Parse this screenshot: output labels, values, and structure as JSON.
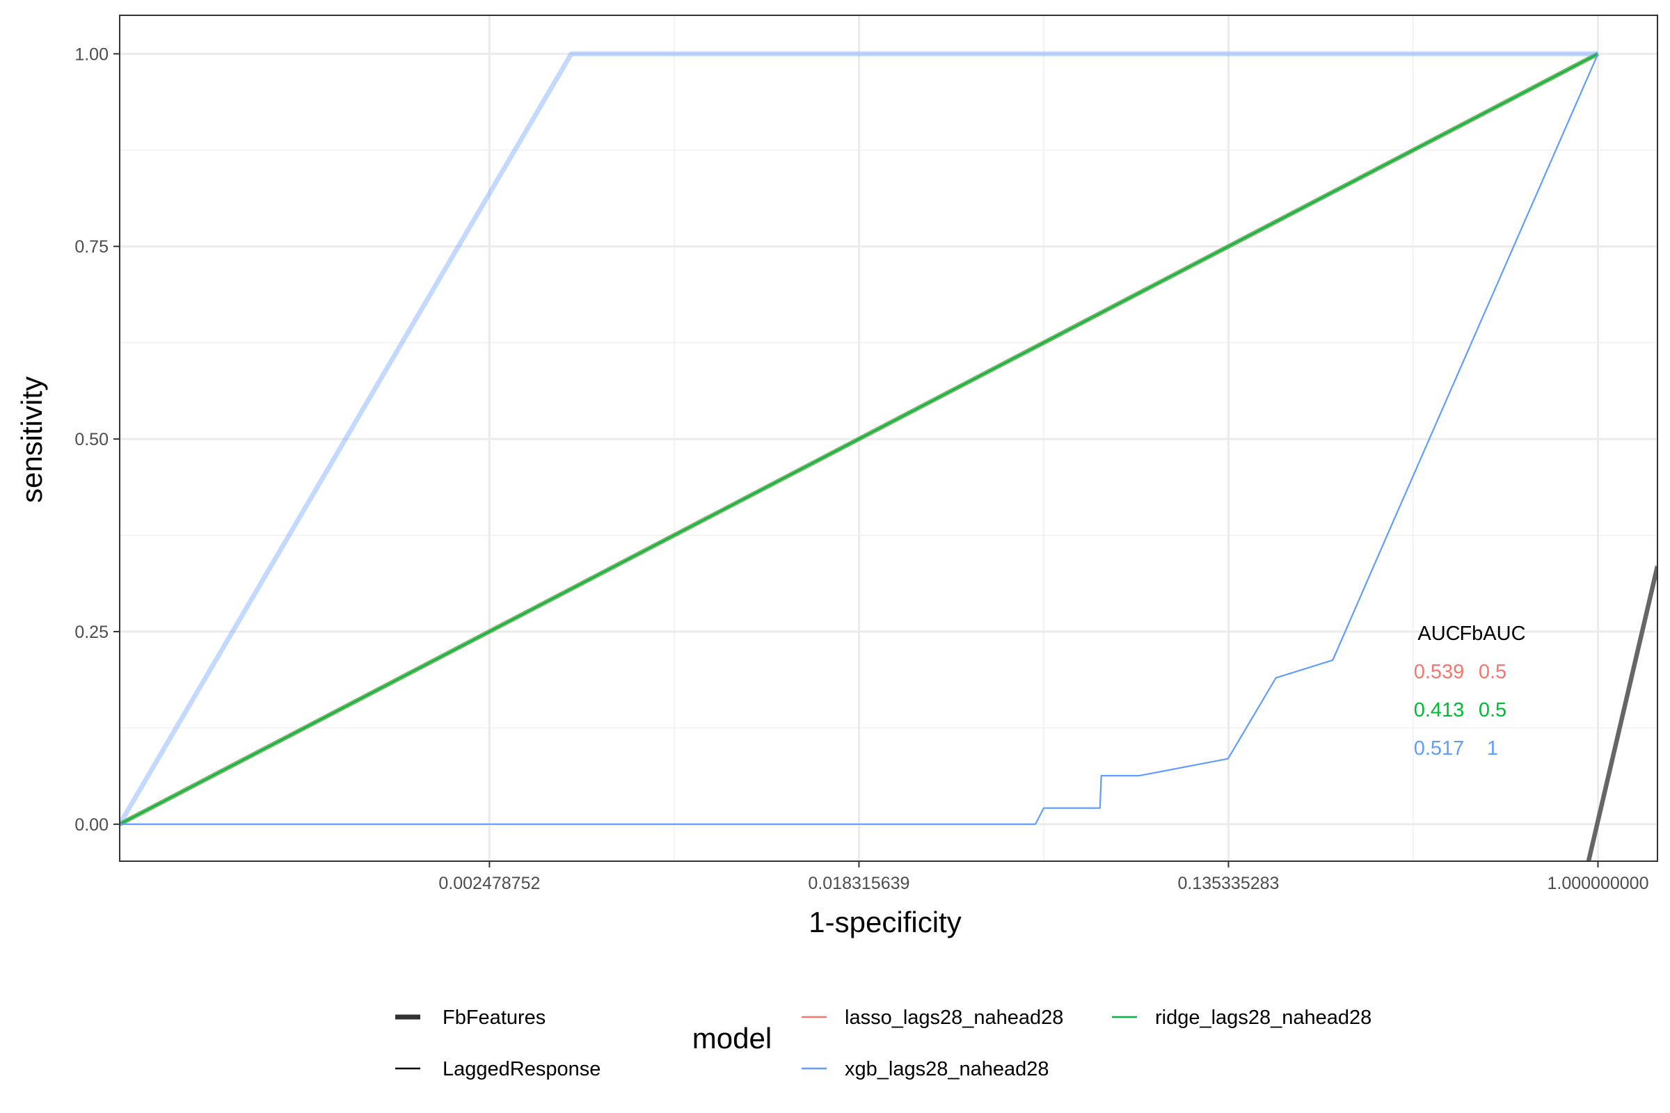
{
  "chart_data": {
    "type": "line",
    "title": "",
    "xlabel": "1-specificity",
    "ylabel": "sensitivity",
    "x_scale": "log",
    "x_tick_values": [
      0.002478752,
      0.018315639,
      0.135335283,
      1.0
    ],
    "x_tick_labels": [
      "0.002478752",
      "0.018315639",
      "0.135335283",
      "1.000000000"
    ],
    "xlim": [
      0.000335,
      1.38
    ],
    "y_ticks": [
      0,
      0.25,
      0.5,
      0.75,
      1
    ],
    "y_tick_labels": [
      "0.00",
      "0.25",
      "0.50",
      "0.75",
      "1.00"
    ],
    "ylim": [
      -0.048,
      1.05
    ],
    "grid": true,
    "theme": "bw",
    "legend": {
      "position": "bottom",
      "title": "model",
      "linetype_items": [
        {
          "label": "FbFeatures",
          "style": "thick",
          "color": "#333333"
        },
        {
          "label": "LaggedResponse",
          "style": "thin",
          "color": "#000000"
        }
      ],
      "color_items": [
        {
          "label": "lasso_lags28_nahead28",
          "color": "#F8766D"
        },
        {
          "label": "xgb_lags28_nahead28",
          "color": "#619CFF"
        },
        {
          "label": "ridge_lags28_nahead28",
          "color": "#00BA38"
        }
      ]
    },
    "series": [
      {
        "name": "lasso_lags28_nahead28",
        "group": "LaggedResponse",
        "color": "#F8766D",
        "x": [
          0.000335,
          1.0
        ],
        "y": [
          0.0,
          1.0
        ]
      },
      {
        "name": "ridge_lags28_nahead28",
        "group": "LaggedResponse",
        "color": "#00BA38",
        "x": [
          0.000335,
          1.0
        ],
        "y": [
          0.0,
          1.0
        ]
      },
      {
        "name": "xgb_lags28_nahead28",
        "group": "LaggedResponse",
        "color": "#619CFF",
        "x": [
          0.000335,
          0.0476,
          0.0498,
          0.0675,
          0.068,
          0.0835,
          0.135,
          0.175,
          0.238,
          0.312,
          1.0
        ],
        "y": [
          0.0,
          0.0,
          0.021,
          0.021,
          0.063,
          0.063,
          0.085,
          0.19,
          0.213,
          0.362,
          1.0
        ]
      },
      {
        "name": "lasso_lags28_nahead28",
        "group": "FbFeatures",
        "color": "#F8766D",
        "x": [
          0.000335,
          1.0
        ],
        "y": [
          0.0,
          1.0
        ]
      },
      {
        "name": "ridge_lags28_nahead28",
        "group": "FbFeatures",
        "color": "#00BA38",
        "x": [
          0.000335,
          1.0
        ],
        "y": [
          0.0,
          1.0
        ]
      },
      {
        "name": "xgb_lags28_nahead28",
        "group": "FbFeatures",
        "color": "#619CFF",
        "x": [
          0.000335,
          0.00386,
          1.0
        ],
        "y": [
          0.0,
          1.0,
          1.0
        ]
      },
      {
        "name": "",
        "group": "FbFeatures",
        "color": "#666666",
        "x": [
          0.95,
          1.38
        ],
        "y": [
          -0.048,
          0.335
        ]
      }
    ],
    "auc_table": {
      "headers": [
        "AUC",
        "FbAUC"
      ],
      "rows": [
        {
          "model": "lasso_lags28_nahead28",
          "auc": "0.539",
          "fbauc": "0.5",
          "color": "#F8766D"
        },
        {
          "model": "ridge_lags28_nahead28",
          "auc": "0.413",
          "fbauc": "0.5",
          "color": "#00BA38"
        },
        {
          "model": "xgb_lags28_nahead28",
          "auc": "0.517",
          "fbauc": "1",
          "color": "#619CFF"
        }
      ]
    }
  }
}
